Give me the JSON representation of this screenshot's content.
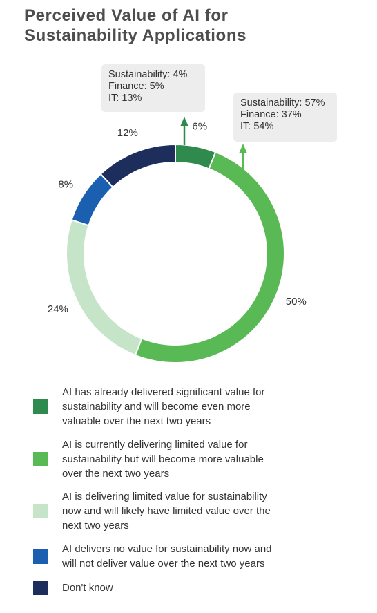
{
  "title": {
    "line1": "Perceived Value of AI for",
    "line2": "Sustainability Applications"
  },
  "callouts": {
    "left": [
      "Sustainability: 4%",
      "Finance: 5%",
      "IT: 13%"
    ],
    "right": [
      "Sustainability: 57%",
      "Finance: 37%",
      "IT: 54%"
    ]
  },
  "chart_data": {
    "type": "pie",
    "variant": "donut",
    "title": "Perceived Value of AI for Sustainability Applications",
    "slices": [
      {
        "label": "AI has already delivered significant value for sustainability and will become even more valuable over the next two years",
        "value": 6,
        "value_label": "6%",
        "color": "#2f8a4e"
      },
      {
        "label": "AI is currently delivering limited value for sustainability but will become more valuable over the next two years",
        "value": 50,
        "value_label": "50%",
        "color": "#58b955"
      },
      {
        "label": "AI is delivering limited value for sustainability now and will likely have limited value over the next two years",
        "value": 24,
        "value_label": "24%",
        "color": "#c6e4c8"
      },
      {
        "label": "AI delivers no value for sustainability now and will not deliver value over the next two years",
        "value": 8,
        "value_label": "8%",
        "color": "#1a5fb0"
      },
      {
        "label": "Don't know",
        "value": 12,
        "value_label": "12%",
        "color": "#1d2d5c"
      }
    ],
    "legend_position": "bottom"
  },
  "legend": [
    {
      "lines": [
        "AI has already delivered significant value for",
        "sustainability and will become even more",
        "valuable over the next two years"
      ],
      "color": "#2f8a4e"
    },
    {
      "lines": [
        "AI is currently delivering limited value for",
        "sustainability but will become more valuable",
        "over the next two years"
      ],
      "color": "#58b955"
    },
    {
      "lines": [
        "AI is delivering limited value for sustainability",
        "now and will likely have limited value over the",
        "next two years"
      ],
      "color": "#c6e4c8"
    },
    {
      "lines": [
        "AI delivers no value for sustainability now and",
        "will not deliver value over the next two years"
      ],
      "color": "#1a5fb0"
    },
    {
      "lines": [
        "Don't know"
      ],
      "color": "#1d2d5c"
    }
  ]
}
